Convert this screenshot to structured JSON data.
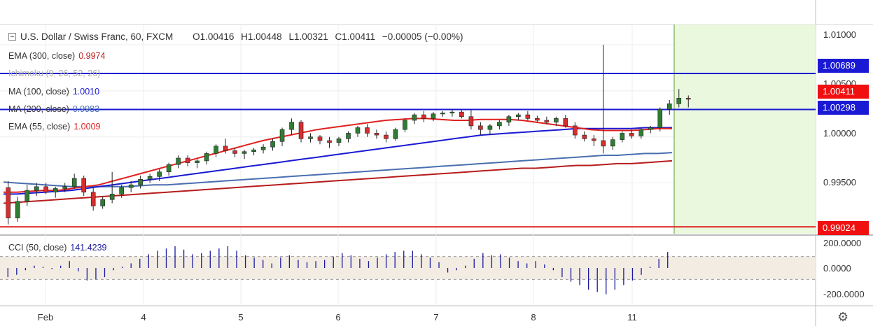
{
  "header": {
    "symbol": "U.S. Dollar / Swiss Franc, 60, FXCM",
    "open": "O1.00416",
    "high": "H1.00448",
    "low": "L1.00321",
    "close": "C1.00411",
    "change": "−0.00005 (−0.00%)"
  },
  "indicators": [
    {
      "label": "EMA (300, close)",
      "value": "0.9974",
      "color": "#b71c1c"
    },
    {
      "label": "Ichimoku (9, 26, 52, 26)",
      "value": "",
      "color": "#aaaaaa"
    },
    {
      "label": "MA (100, close)",
      "value": "1.0010",
      "color": "#1a1ad4"
    },
    {
      "label": "MA (200, close)",
      "value": "0.9983",
      "color": "#4a6fb0"
    },
    {
      "label": "EMA (55, close)",
      "value": "1.0009",
      "color": "#e02020"
    }
  ],
  "cci": {
    "label": "CCI (50, close)",
    "value": "141.4239",
    "color": "#1a1a9e"
  },
  "price_axis": [
    "1.01000",
    "1.00500",
    "1.00000",
    "0.99500"
  ],
  "cci_axis": [
    "200.0000",
    "0.0000",
    "-200.0000"
  ],
  "price_tags": {
    "resistance_1": "1.00689",
    "last": "1.00411",
    "support_1": "1.00298",
    "support_2": "0.99024"
  },
  "time_axis": [
    "Feb",
    "4",
    "5",
    "6",
    "7",
    "8",
    "11"
  ],
  "chart_data": {
    "type": "candlestick",
    "instrument": "USD/CHF",
    "timeframe": "60",
    "ylim": [
      0.9895,
      1.0122
    ],
    "cci_ylim": [
      -260,
      260
    ],
    "horizontal_levels": [
      {
        "price": 1.00689,
        "color": "#1a1ad4"
      },
      {
        "price": 1.00298,
        "color": "#1a1ad4"
      },
      {
        "price": 0.99024,
        "color": "#e02020"
      }
    ],
    "candles": [
      [
        0.9945,
        0.9952,
        0.9905,
        0.9912
      ],
      [
        0.9912,
        0.9935,
        0.9908,
        0.993
      ],
      [
        0.993,
        0.9948,
        0.9925,
        0.9942
      ],
      [
        0.9942,
        0.995,
        0.9936,
        0.9946
      ],
      [
        0.9946,
        0.995,
        0.9938,
        0.994
      ],
      [
        0.994,
        0.9946,
        0.9934,
        0.9944
      ],
      [
        0.9944,
        0.995,
        0.994,
        0.9946
      ],
      [
        0.9946,
        0.996,
        0.9944,
        0.9955
      ],
      [
        0.9955,
        0.9958,
        0.9936,
        0.994
      ],
      [
        0.994,
        0.9945,
        0.992,
        0.9925
      ],
      [
        0.9925,
        0.9935,
        0.9922,
        0.9932
      ],
      [
        0.9932,
        0.9962,
        0.9928,
        0.9938
      ],
      [
        0.9938,
        0.9948,
        0.9934,
        0.9945
      ],
      [
        0.9945,
        0.9952,
        0.994,
        0.9948
      ],
      [
        0.9948,
        0.9958,
        0.9944,
        0.9954
      ],
      [
        0.9954,
        0.996,
        0.995,
        0.9957
      ],
      [
        0.9957,
        0.9965,
        0.9952,
        0.9962
      ],
      [
        0.9962,
        0.9972,
        0.9958,
        0.997
      ],
      [
        0.997,
        0.998,
        0.9966,
        0.9977
      ],
      [
        0.9977,
        0.998,
        0.9968,
        0.9972
      ],
      [
        0.9972,
        0.9976,
        0.9966,
        0.9974
      ],
      [
        0.9974,
        0.9984,
        0.997,
        0.9982
      ],
      [
        0.9982,
        0.9992,
        0.9978,
        0.999
      ],
      [
        0.999,
        0.9998,
        0.9982,
        0.9985
      ],
      [
        0.9985,
        0.9988,
        0.9978,
        0.9982
      ],
      [
        0.9982,
        0.9986,
        0.9976,
        0.9984
      ],
      [
        0.9984,
        0.9988,
        0.998,
        0.9986
      ],
      [
        0.9986,
        0.9992,
        0.9982,
        0.9989
      ],
      [
        0.9989,
        0.9998,
        0.9985,
        0.9995
      ],
      [
        0.9995,
        1.001,
        0.999,
        1.0008
      ],
      [
        1.0008,
        1.002,
        1.0002,
        1.0016
      ],
      [
        1.0016,
        1.0018,
        0.9994,
        0.9998
      ],
      [
        0.9998,
        1.0004,
        0.9994,
        1.0
      ],
      [
        1.0,
        1.0002,
        0.9992,
        0.9996
      ],
      [
        0.9996,
        1.0,
        0.9988,
        0.9994
      ],
      [
        0.9994,
        1.0,
        0.999,
        0.9998
      ],
      [
        0.9998,
        1.0006,
        0.9994,
        1.0004
      ],
      [
        1.0004,
        1.0012,
        1.0,
        1.001
      ],
      [
        1.001,
        1.0014,
        1.0,
        1.0004
      ],
      [
        1.0004,
        1.0008,
        0.9998,
        1.0002
      ],
      [
        1.0002,
        1.0006,
        0.9994,
        0.9998
      ],
      [
        0.9998,
        1.001,
        0.9996,
        1.0008
      ],
      [
        1.0008,
        1.002,
        1.0005,
        1.0018
      ],
      [
        1.0018,
        1.0026,
        1.0014,
        1.0024
      ],
      [
        1.0024,
        1.0028,
        1.0016,
        1.002
      ],
      [
        1.002,
        1.0027,
        1.0017,
        1.0025
      ],
      [
        1.0025,
        1.0028,
        1.0022,
        1.0026
      ],
      [
        1.0026,
        1.003,
        1.0022,
        1.0027
      ],
      [
        1.0027,
        1.0029,
        1.002,
        1.0022
      ],
      [
        1.0022,
        1.0029,
        1.0008,
        1.0012
      ],
      [
        1.0012,
        1.0016,
        1.0002,
        1.0008
      ],
      [
        1.0008,
        1.0014,
        1.0002,
        1.0012
      ],
      [
        1.0012,
        1.0018,
        1.0008,
        1.0016
      ],
      [
        1.0016,
        1.0024,
        1.0012,
        1.0022
      ],
      [
        1.0022,
        1.0026,
        1.0018,
        1.0024
      ],
      [
        1.0024,
        1.0028,
        1.0018,
        1.002
      ],
      [
        1.002,
        1.0023,
        1.0016,
        1.0018
      ],
      [
        1.0018,
        1.0022,
        1.0014,
        1.0016
      ],
      [
        1.0016,
        1.0022,
        1.0012,
        1.002
      ],
      [
        1.002,
        1.0024,
        1.001,
        1.0012
      ],
      [
        1.0012,
        1.0016,
        0.9998,
        1.0002
      ],
      [
        1.0002,
        1.0006,
        0.9995,
        0.9998
      ],
      [
        0.9998,
        1.0002,
        0.999,
        0.9996
      ],
      [
        0.9996,
        1.01,
        0.9982,
        0.999
      ],
      [
        0.999,
        1.0,
        0.9986,
        0.9997
      ],
      [
        0.9997,
        1.0006,
        0.9994,
        1.0004
      ],
      [
        1.0004,
        1.0008,
        0.9998,
        1.0001
      ],
      [
        1.0001,
        1.001,
        0.9998,
        1.0008
      ],
      [
        1.0008,
        1.0012,
        1.0004,
        1.001
      ],
      [
        1.001,
        1.0032,
        1.0006,
        1.003
      ],
      [
        1.003,
        1.004,
        1.0024,
        1.0036
      ],
      [
        1.0036,
        1.0052,
        1.0032,
        1.0042
      ],
      [
        1.0042,
        1.0045,
        1.0032,
        1.0041
      ]
    ],
    "series": [
      {
        "name": "EMA (300, close)",
        "color": "#b71c1c",
        "values": [
          0.9928,
          0.9929,
          0.993,
          0.9931,
          0.9932,
          0.9933,
          0.9934,
          0.9935,
          0.9936,
          0.9937,
          0.9938,
          0.9939,
          0.994,
          0.9941,
          0.9942,
          0.9943,
          0.9944,
          0.9945,
          0.9946,
          0.9947,
          0.9948,
          0.9949,
          0.995,
          0.9951,
          0.9952,
          0.9953,
          0.9954,
          0.9955,
          0.9956,
          0.9957,
          0.9958,
          0.9959,
          0.996,
          0.9961,
          0.9962,
          0.9963,
          0.9964,
          0.9965,
          0.9966,
          0.9966,
          0.9967,
          0.9968,
          0.9969,
          0.9969,
          0.997,
          0.9971,
          0.9971,
          0.9972,
          0.9973,
          0.9974
        ]
      },
      {
        "name": "MA (200, close)",
        "color": "#4a6fb0",
        "values": [
          0.9951,
          0.995,
          0.9949,
          0.9948,
          0.9947,
          0.9946,
          0.9946,
          0.9946,
          0.9946,
          0.9946,
          0.9947,
          0.9948,
          0.9948,
          0.9949,
          0.995,
          0.9951,
          0.9952,
          0.9953,
          0.9954,
          0.9955,
          0.9956,
          0.9957,
          0.9958,
          0.9959,
          0.996,
          0.9961,
          0.9962,
          0.9963,
          0.9964,
          0.9965,
          0.9966,
          0.9967,
          0.9968,
          0.9969,
          0.997,
          0.9971,
          0.9972,
          0.9973,
          0.9974,
          0.9975,
          0.9976,
          0.9977,
          0.9978,
          0.9979,
          0.998,
          0.998,
          0.9981,
          0.9982,
          0.9982,
          0.9983
        ]
      },
      {
        "name": "MA (100, close)",
        "color": "#1a1ad4",
        "values": [
          0.9938,
          0.9938,
          0.9939,
          0.994,
          0.9941,
          0.9942,
          0.9944,
          0.9946,
          0.9948,
          0.995,
          0.9952,
          0.9954,
          0.9956,
          0.9958,
          0.996,
          0.9962,
          0.9964,
          0.9966,
          0.9968,
          0.997,
          0.9972,
          0.9974,
          0.9976,
          0.9978,
          0.998,
          0.9982,
          0.9984,
          0.9986,
          0.9988,
          0.999,
          0.9992,
          0.9994,
          0.9996,
          0.9998,
          1.0,
          1.0002,
          1.0003,
          1.0004,
          1.0005,
          1.0006,
          1.0007,
          1.0008,
          1.0009,
          1.0009,
          1.0009,
          1.0009,
          1.0009,
          1.001,
          1.001,
          1.001
        ]
      },
      {
        "name": "EMA (55, close)",
        "color": "#e02020",
        "values": [
          0.994,
          0.994,
          0.9941,
          0.9942,
          0.9942,
          0.9944,
          0.9946,
          0.9948,
          0.9952,
          0.9956,
          0.996,
          0.9964,
          0.9968,
          0.9972,
          0.9976,
          0.998,
          0.9984,
          0.9988,
          0.9992,
          0.9996,
          0.9999,
          1.0002,
          1.0005,
          1.0008,
          1.001,
          1.0012,
          1.0014,
          1.0016,
          1.0018,
          1.0019,
          1.002,
          1.002,
          1.0019,
          1.0018,
          1.0018,
          1.0019,
          1.0019,
          1.0019,
          1.0018,
          1.0016,
          1.0014,
          1.0012,
          1.001,
          1.0008,
          1.0007,
          1.0007,
          1.0007,
          1.0008,
          1.0009,
          1.0009
        ]
      }
    ],
    "cci_values": [
      -80,
      -60,
      -20,
      20,
      10,
      -10,
      20,
      60,
      -30,
      -110,
      -100,
      -80,
      -20,
      10,
      40,
      80,
      120,
      150,
      170,
      190,
      160,
      120,
      130,
      150,
      170,
      190,
      150,
      110,
      90,
      70,
      40,
      90,
      110,
      70,
      50,
      60,
      70,
      100,
      130,
      110,
      80,
      60,
      90,
      120,
      140,
      150,
      150,
      120,
      90,
      50,
      -40,
      -20,
      20,
      80,
      130,
      110,
      120,
      90,
      60,
      40,
      60,
      30,
      -20,
      -80,
      -120,
      -150,
      -190,
      -210,
      -230,
      -190,
      -150,
      -110,
      -60,
      10,
      80,
      140
    ]
  }
}
